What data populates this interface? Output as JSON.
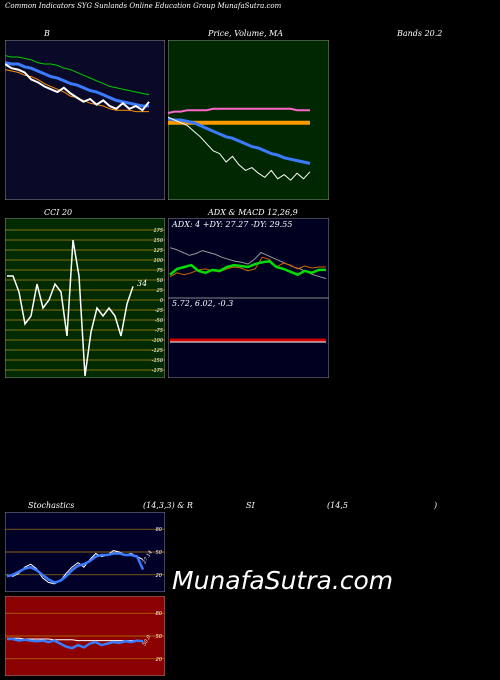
{
  "header": {
    "title": "Common Indicators SYG Sunlands Online Education Group MunafaSutra.com"
  },
  "labels": {
    "bollinger": "B",
    "price_volume_ma": "Price, Volume, MA",
    "bands": "Bands 20.2",
    "cci": "CCI 20",
    "adx_macd": "ADX & MACD 12,26,9",
    "stoch_left": "Stochastics",
    "stoch_mid": "(14,3,3) & R",
    "stoch_rsi": "SI",
    "stoch_right": "(14,5",
    "stoch_end": ")"
  },
  "adx_text": "ADX: 4  +DY: 27.27 -DY: 29.55",
  "macd_text": "5.72, 6.02, -0.3",
  "cci_value": "34",
  "stoch_value": "27.14",
  "rsi_value": "50.0",
  "watermark": "MunafaSutra.com",
  "colors": {
    "bb_bg": "#0a0a28",
    "pv_bg": "#002800",
    "cci_bg": "#002a00",
    "adx_bg": "#000020",
    "stoch_bg": "#000028",
    "rsi_bg": "#8b0000"
  },
  "chart_data": [
    {
      "type": "line",
      "series": [
        {
          "values": [
            96,
            95,
            95,
            94,
            93,
            91,
            90,
            90,
            89,
            87,
            86,
            84,
            82,
            80,
            78,
            76,
            74,
            73,
            72,
            71,
            70,
            69,
            68
          ]
        },
        {
          "values": [
            91,
            90,
            90,
            88,
            87,
            85,
            83,
            81,
            80,
            78,
            76,
            75,
            73,
            71,
            70,
            68,
            66,
            64,
            63,
            62,
            61,
            60,
            60
          ]
        },
        {
          "values": [
            86,
            85,
            84,
            82,
            81,
            79,
            76,
            74,
            72,
            70,
            67,
            66,
            64,
            62,
            61,
            60,
            58,
            57,
            57,
            57,
            56,
            56,
            56
          ]
        },
        {
          "values": [
            90,
            87,
            86,
            84,
            79,
            77,
            74,
            72,
            70,
            73,
            69,
            66,
            63,
            65,
            61,
            64,
            60,
            58,
            62,
            58,
            60,
            57,
            63
          ]
        }
      ]
    },
    {
      "type": "line",
      "series": [
        {
          "values": [
            55,
            56,
            56,
            57,
            57,
            57,
            57,
            58,
            58,
            58,
            58,
            58,
            58,
            58,
            58,
            58,
            58,
            58,
            58,
            58,
            57,
            57,
            57
          ]
        },
        {
          "values": [
            48,
            48,
            48,
            48,
            48,
            48,
            48,
            48,
            48,
            48,
            48,
            48,
            48,
            48,
            48,
            48,
            48,
            48,
            48,
            48,
            48,
            48,
            48
          ]
        },
        {
          "values": [
            51,
            50,
            50,
            49,
            48,
            46,
            44,
            42,
            40,
            38,
            37,
            35,
            33,
            31,
            30,
            28,
            26,
            25,
            23,
            22,
            21,
            20,
            19
          ]
        },
        {
          "values": [
            52,
            50,
            48,
            46,
            42,
            38,
            33,
            28,
            26,
            20,
            24,
            18,
            14,
            16,
            12,
            9,
            14,
            8,
            11,
            7,
            12,
            8,
            13
          ]
        }
      ]
    },
    {
      "type": "line",
      "yticks": [
        175,
        150,
        125,
        100,
        75,
        50,
        25,
        0,
        -25,
        -50,
        -75,
        -100,
        -125,
        -150,
        -175
      ],
      "values": [
        60,
        60,
        20,
        -60,
        -40,
        40,
        -20,
        0,
        40,
        20,
        -90,
        150,
        60,
        -190,
        -80,
        -20,
        -40,
        -20,
        -40,
        -90,
        -10,
        34
      ]
    },
    {
      "type": "line",
      "ylabels": [
        "ADX",
        "+DI",
        "-DI"
      ],
      "series": [
        {
          "values": [
            50,
            48,
            45,
            42,
            44,
            47,
            45,
            43,
            40,
            38,
            36,
            35,
            33,
            38,
            45,
            42,
            39,
            36,
            33,
            30,
            28,
            25,
            22,
            20,
            18
          ]
        },
        {
          "values": [
            22,
            28,
            30,
            32,
            26,
            24,
            27,
            26,
            30,
            32,
            31,
            30,
            33,
            35,
            36,
            30,
            28,
            25,
            22,
            26,
            24,
            27,
            27
          ]
        },
        {
          "values": [
            20,
            24,
            22,
            24,
            27,
            28,
            26,
            25,
            28,
            30,
            29,
            26,
            28,
            40,
            38,
            30,
            34,
            32,
            28,
            31,
            29,
            30,
            30
          ]
        }
      ],
      "macd": 5.72,
      "signal": 6.02,
      "histogram": -0.3
    },
    {
      "type": "line",
      "yticks": [
        80,
        50,
        20
      ],
      "series": [
        {
          "values": [
            20,
            18,
            22,
            30,
            34,
            28,
            16,
            10,
            8,
            12,
            22,
            30,
            36,
            30,
            40,
            48,
            44,
            46,
            52,
            50,
            46,
            48,
            44,
            40
          ]
        },
        {
          "values": [
            18,
            20,
            24,
            28,
            30,
            26,
            20,
            14,
            10,
            12,
            18,
            26,
            32,
            34,
            38,
            44,
            46,
            46,
            48,
            48,
            46,
            46,
            44,
            27
          ]
        }
      ]
    },
    {
      "type": "line",
      "yticks": [
        80,
        50,
        20
      ],
      "series": [
        {
          "values": [
            47,
            47,
            47,
            46,
            46,
            46,
            46,
            46,
            45,
            45,
            45,
            45,
            44,
            44,
            44,
            44,
            44,
            44,
            44,
            44,
            44,
            44,
            44,
            44
          ]
        },
        {
          "values": [
            46,
            46,
            44,
            45,
            44,
            43,
            44,
            42,
            44,
            40,
            36,
            34,
            38,
            35,
            40,
            42,
            38,
            40,
            42,
            41,
            43,
            42,
            44,
            43
          ]
        }
      ]
    }
  ]
}
